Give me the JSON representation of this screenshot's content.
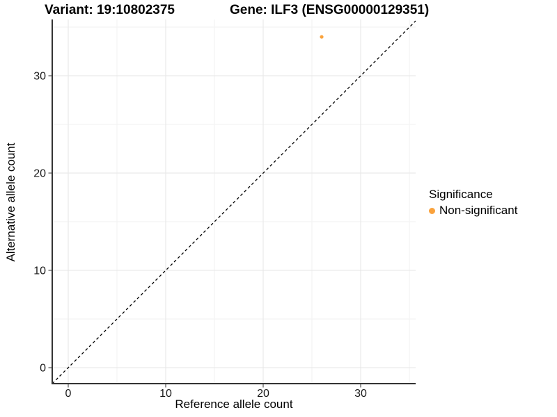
{
  "header": {
    "variant_title": "Variant: 19:10802375",
    "gene_title": "Gene: ILF3 (ENSG00000129351)"
  },
  "chart_data": {
    "type": "scatter",
    "title_left": "Variant: 19:10802375",
    "title_right": "Gene: ILF3 (ENSG00000129351)",
    "xlabel": "Reference allele count",
    "ylabel": "Alternative allele count",
    "xlim": [
      -1.64,
      35.64
    ],
    "ylim": [
      -1.64,
      35.79
    ],
    "xticks": [
      0,
      10,
      20,
      30
    ],
    "yticks": [
      0,
      10,
      20,
      30
    ],
    "x_minor_ticks": [
      5,
      15,
      25,
      35
    ],
    "y_minor_ticks": [
      5,
      15,
      25,
      35
    ],
    "grid": true,
    "points": [
      {
        "x": 26,
        "y": 34,
        "series": "Non-significant"
      }
    ],
    "reference_line": {
      "kind": "identity",
      "style": "dashed"
    },
    "legend": {
      "title": "Significance",
      "position": "right",
      "entries": [
        {
          "label": "Non-significant",
          "color": "#FAA23C"
        }
      ]
    },
    "colors": {
      "point": "#FAA23C",
      "grid_major": "#E6E6E6",
      "grid_minor": "#F2F2F2",
      "axis_line": "#333333",
      "tick_text": "#1A1A1A",
      "dashed_line": "#000000",
      "background": "#FFFFFF"
    }
  }
}
